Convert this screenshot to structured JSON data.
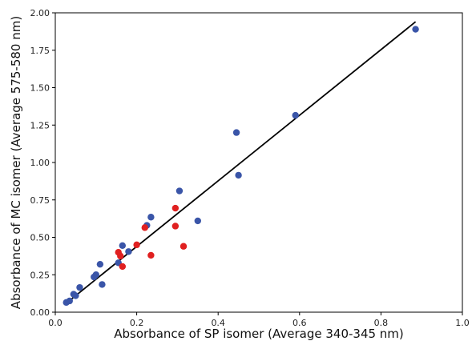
{
  "chart_data": {
    "type": "scatter",
    "title": "",
    "xlabel": "Absorbance of SP isomer (Average 340-345 nm)",
    "ylabel": "Absorbance of MC isomer (Average 575-580 nm)",
    "xlim": [
      0.0,
      1.0
    ],
    "ylim": [
      0.0,
      2.0
    ],
    "x_ticks": [
      "0.0",
      "0.2",
      "0.4",
      "0.6",
      "0.8",
      "1.0"
    ],
    "y_ticks": [
      "0.00",
      "0.25",
      "0.50",
      "0.75",
      "1.00",
      "1.25",
      "1.50",
      "1.75",
      "2.00"
    ],
    "grid": false,
    "legend": "none",
    "series": [
      {
        "color": "#3a55a8",
        "points": [
          [
            0.027,
            0.065
          ],
          [
            0.035,
            0.075
          ],
          [
            0.045,
            0.12
          ],
          [
            0.05,
            0.11
          ],
          [
            0.06,
            0.165
          ],
          [
            0.095,
            0.235
          ],
          [
            0.1,
            0.25
          ],
          [
            0.11,
            0.32
          ],
          [
            0.115,
            0.185
          ],
          [
            0.155,
            0.33
          ],
          [
            0.165,
            0.445
          ],
          [
            0.18,
            0.405
          ],
          [
            0.225,
            0.58
          ],
          [
            0.235,
            0.635
          ],
          [
            0.305,
            0.81
          ],
          [
            0.35,
            0.61
          ],
          [
            0.445,
            1.2
          ],
          [
            0.45,
            0.915
          ],
          [
            0.59,
            1.315
          ],
          [
            0.885,
            1.89
          ]
        ]
      },
      {
        "color": "#e02020",
        "points": [
          [
            0.155,
            0.4
          ],
          [
            0.16,
            0.375
          ],
          [
            0.165,
            0.305
          ],
          [
            0.2,
            0.45
          ],
          [
            0.22,
            0.565
          ],
          [
            0.235,
            0.38
          ],
          [
            0.295,
            0.695
          ],
          [
            0.295,
            0.575
          ],
          [
            0.315,
            0.44
          ]
        ]
      }
    ],
    "fit_line": {
      "color": "#000000",
      "from": [
        0.027,
        0.06
      ],
      "to": [
        0.885,
        1.94
      ]
    }
  }
}
